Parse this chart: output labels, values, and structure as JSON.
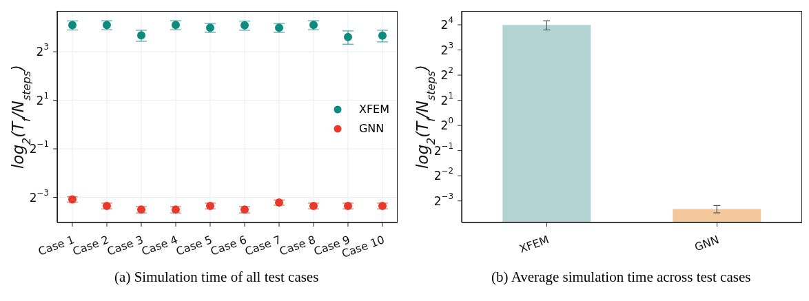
{
  "chart_data": [
    {
      "type": "scatter",
      "categories": [
        "Case 1",
        "Case 2",
        "Case 3",
        "Case 4",
        "Case 5",
        "Case 6",
        "Case 7",
        "Case 8",
        "Case 9",
        "Case 10"
      ],
      "series": [
        {
          "name": "XFEM",
          "color": "#0e8a80",
          "values": [
            17.1,
            17.2,
            12.8,
            17.2,
            15.9,
            17.0,
            15.9,
            17.2,
            12.2,
            12.7
          ],
          "errors": [
            2.2,
            2.2,
            2.0,
            2.2,
            2.0,
            2.2,
            2.0,
            2.2,
            2.3,
            2.1
          ]
        },
        {
          "name": "GNN",
          "color": "#e8392a",
          "values": [
            0.118,
            0.098,
            0.088,
            0.088,
            0.098,
            0.088,
            0.108,
            0.098,
            0.098,
            0.098
          ],
          "errors": [
            0.009,
            0.008,
            0.008,
            0.008,
            0.008,
            0.008,
            0.008,
            0.008,
            0.008,
            0.008
          ]
        }
      ],
      "ylabel": "log$_{2}$(T$_{f}$/N$_{steps}$)",
      "log": true,
      "ylim": [
        0.061,
        25.6
      ],
      "yticks": [
        {
          "value": 0.125,
          "label": "2$^{−3}$"
        },
        {
          "value": 0.5,
          "label": "2$^{−1}$"
        },
        {
          "value": 2,
          "label": "2$^{1}$"
        },
        {
          "value": 8,
          "label": "2$^{3}$"
        }
      ],
      "grid": true,
      "legend": "center right",
      "marker": "circle",
      "annotations": [
        "(a) Simulation time of all test cases"
      ]
    },
    {
      "type": "bar",
      "categories": [
        "XFEM",
        "GNN"
      ],
      "values": [
        15.9,
        0.1
      ],
      "errors": [
        2,
        0.01
      ],
      "colors": [
        "#b2d3d2",
        "#f4c89b"
      ],
      "ylabel": "log$_{2}$(T$_{f}$/N$_{steps}$)",
      "log": true,
      "ylim": [
        0.069,
        23.4
      ],
      "yticks": [
        {
          "value": 0.125,
          "label": "2$^{−3}$"
        },
        {
          "value": 0.25,
          "label": "2$^{−2}$"
        },
        {
          "value": 0.5,
          "label": "2$^{−1}$"
        },
        {
          "value": 1,
          "label": "2$^{0}$"
        },
        {
          "value": 2,
          "label": "2$^{1}$"
        },
        {
          "value": 4,
          "label": "2$^{2}$"
        },
        {
          "value": 8,
          "label": "2$^{3}$"
        },
        {
          "value": 16,
          "label": "2$^{4}$"
        }
      ],
      "grid": false,
      "annotations": [
        "(b) Average simulation time across test cases"
      ]
    }
  ]
}
